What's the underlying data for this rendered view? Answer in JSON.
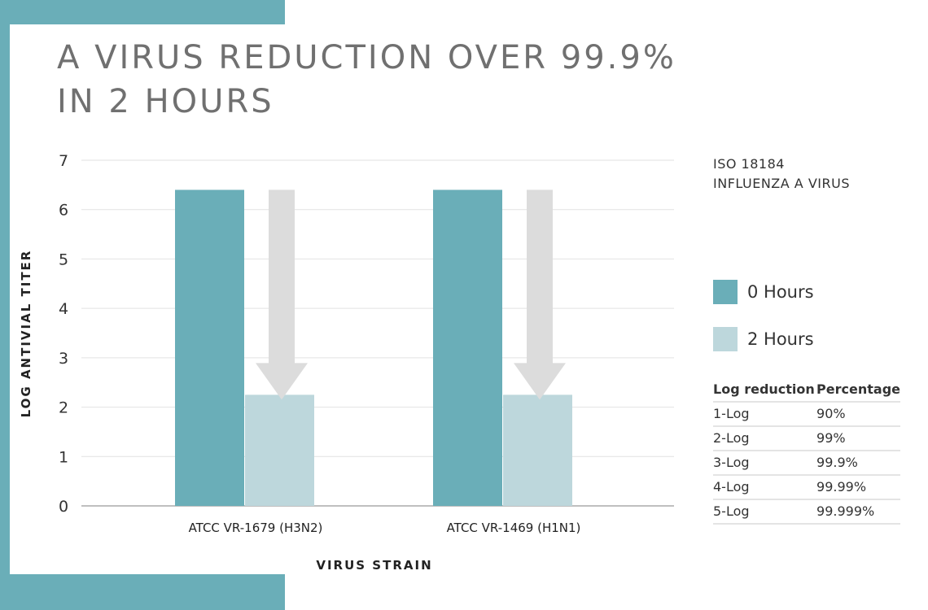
{
  "title_line1": "A VIRUS REDUCTION OVER 99.9%",
  "title_line2": "IN 2 HOURS",
  "colors": {
    "band": "#6aaeb8",
    "h0": "#6aaeb8",
    "h2": "#bdd7dc",
    "arrow": "#dcdcdc"
  },
  "note": {
    "line1": "ISO 18184",
    "line2": "INFLUENZA A VIRUS"
  },
  "chart_data": {
    "type": "bar",
    "title": "A VIRUS REDUCTION OVER 99.9% IN 2 HOURS",
    "xlabel": "VIRUS STRAIN",
    "ylabel": "LOG ANTIVIAL TITER",
    "ylim": [
      0,
      7
    ],
    "yticks": [
      "0",
      "1",
      "2",
      "3",
      "4",
      "5",
      "6",
      "7"
    ],
    "categories": [
      "ATCC VR-1679 (H3N2)",
      "ATCC VR-1469 (H1N1)"
    ],
    "series": [
      {
        "name": "0 Hours",
        "values": [
          6.4,
          6.4
        ]
      },
      {
        "name": "2 Hours",
        "values": [
          2.25,
          2.25
        ]
      }
    ],
    "grid": true,
    "legend": "right"
  },
  "table": {
    "headers": [
      "Log reduction",
      "Percentage"
    ],
    "rows": [
      [
        "1-Log",
        "90%"
      ],
      [
        "2-Log",
        "99%"
      ],
      [
        "3-Log",
        "99.9%"
      ],
      [
        "4-Log",
        "99.99%"
      ],
      [
        "5-Log",
        "99.999%"
      ]
    ]
  }
}
